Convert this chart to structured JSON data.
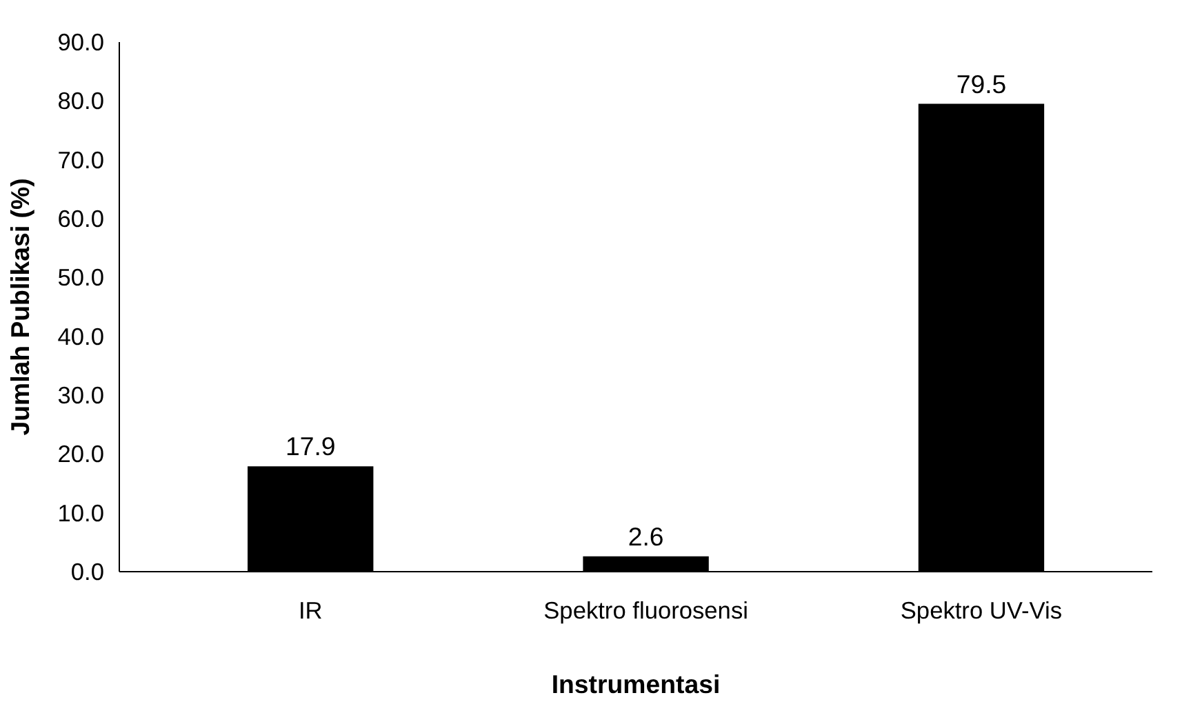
{
  "chart_data": {
    "type": "bar",
    "xlabel": "Instrumentasi",
    "ylabel": "Jumlah Publikasi (%)",
    "categories": [
      "IR",
      "Spektro fluorosensi",
      "Spektro UV-Vis"
    ],
    "values": [
      17.9,
      2.6,
      79.5
    ],
    "color": "#000000",
    "data_labels": true,
    "grid": false,
    "ylim": [
      0,
      90
    ],
    "yticks": [
      {
        "value": 0,
        "label": "0.0"
      },
      {
        "value": 10,
        "label": "10.0"
      },
      {
        "value": 20,
        "label": "20.0"
      },
      {
        "value": 30,
        "label": "30.0"
      },
      {
        "value": 40,
        "label": "40.0"
      },
      {
        "value": 50,
        "label": "50.0"
      },
      {
        "value": 60,
        "label": "60.0"
      },
      {
        "value": 70,
        "label": "70.0"
      },
      {
        "value": 80,
        "label": "80.0"
      },
      {
        "value": 90,
        "label": "90.0"
      }
    ]
  }
}
